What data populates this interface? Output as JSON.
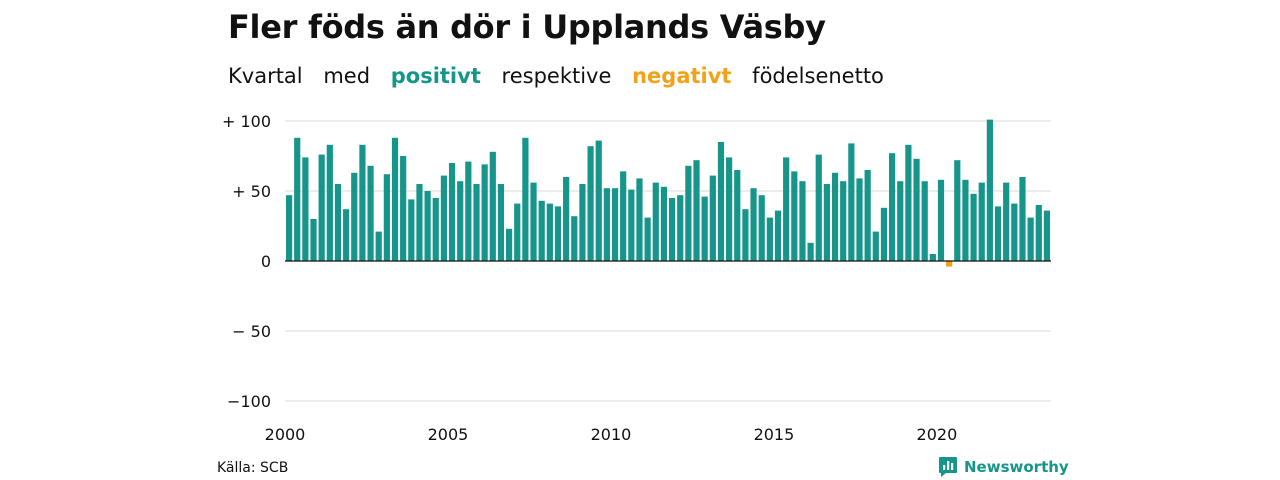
{
  "title": "Fler föds än dör i Upplands Väsby",
  "subtitle": {
    "w1": "Kvartal",
    "w2": "med",
    "positive": "positivt",
    "w3": "respektive",
    "negative": "negativt",
    "w4": "födelsenetto"
  },
  "source": "Källa: SCB",
  "brand": {
    "name": "Newsworthy",
    "icon": "newsworthy-logo-icon"
  },
  "colors": {
    "positive": "#16968a",
    "negative": "#f2a218",
    "grid": "#d9d9d9",
    "axis": "#111111"
  },
  "chart_data": {
    "type": "bar",
    "title": "Fler föds än dör i Upplands Väsby",
    "xlabel": "",
    "ylabel": "",
    "x_start_year": 2000,
    "x_step": "quarter",
    "ylim": [
      -100,
      100
    ],
    "yticks": [
      100,
      50,
      0,
      -50,
      -100
    ],
    "ytick_labels": [
      "+ 100",
      "+  50",
      "0",
      "− 50",
      "−100"
    ],
    "xtick_labels": [
      "2000",
      "2005",
      "2010",
      "2015",
      "2020"
    ],
    "grid": true,
    "values": [
      47,
      88,
      74,
      30,
      76,
      83,
      55,
      37,
      63,
      83,
      68,
      21,
      62,
      88,
      75,
      44,
      55,
      50,
      45,
      61,
      70,
      57,
      71,
      55,
      69,
      78,
      55,
      23,
      41,
      88,
      56,
      43,
      41,
      39,
      60,
      32,
      55,
      82,
      86,
      52,
      52,
      64,
      51,
      59,
      31,
      56,
      53,
      45,
      47,
      68,
      72,
      46,
      61,
      85,
      74,
      65,
      37,
      52,
      47,
      31,
      36,
      74,
      64,
      57,
      13,
      76,
      55,
      63,
      57,
      84,
      59,
      65,
      21,
      38,
      77,
      57,
      83,
      73,
      57,
      5,
      58,
      -4,
      72,
      58,
      48,
      56,
      101,
      39,
      56,
      41,
      60,
      31,
      40,
      36
    ]
  }
}
